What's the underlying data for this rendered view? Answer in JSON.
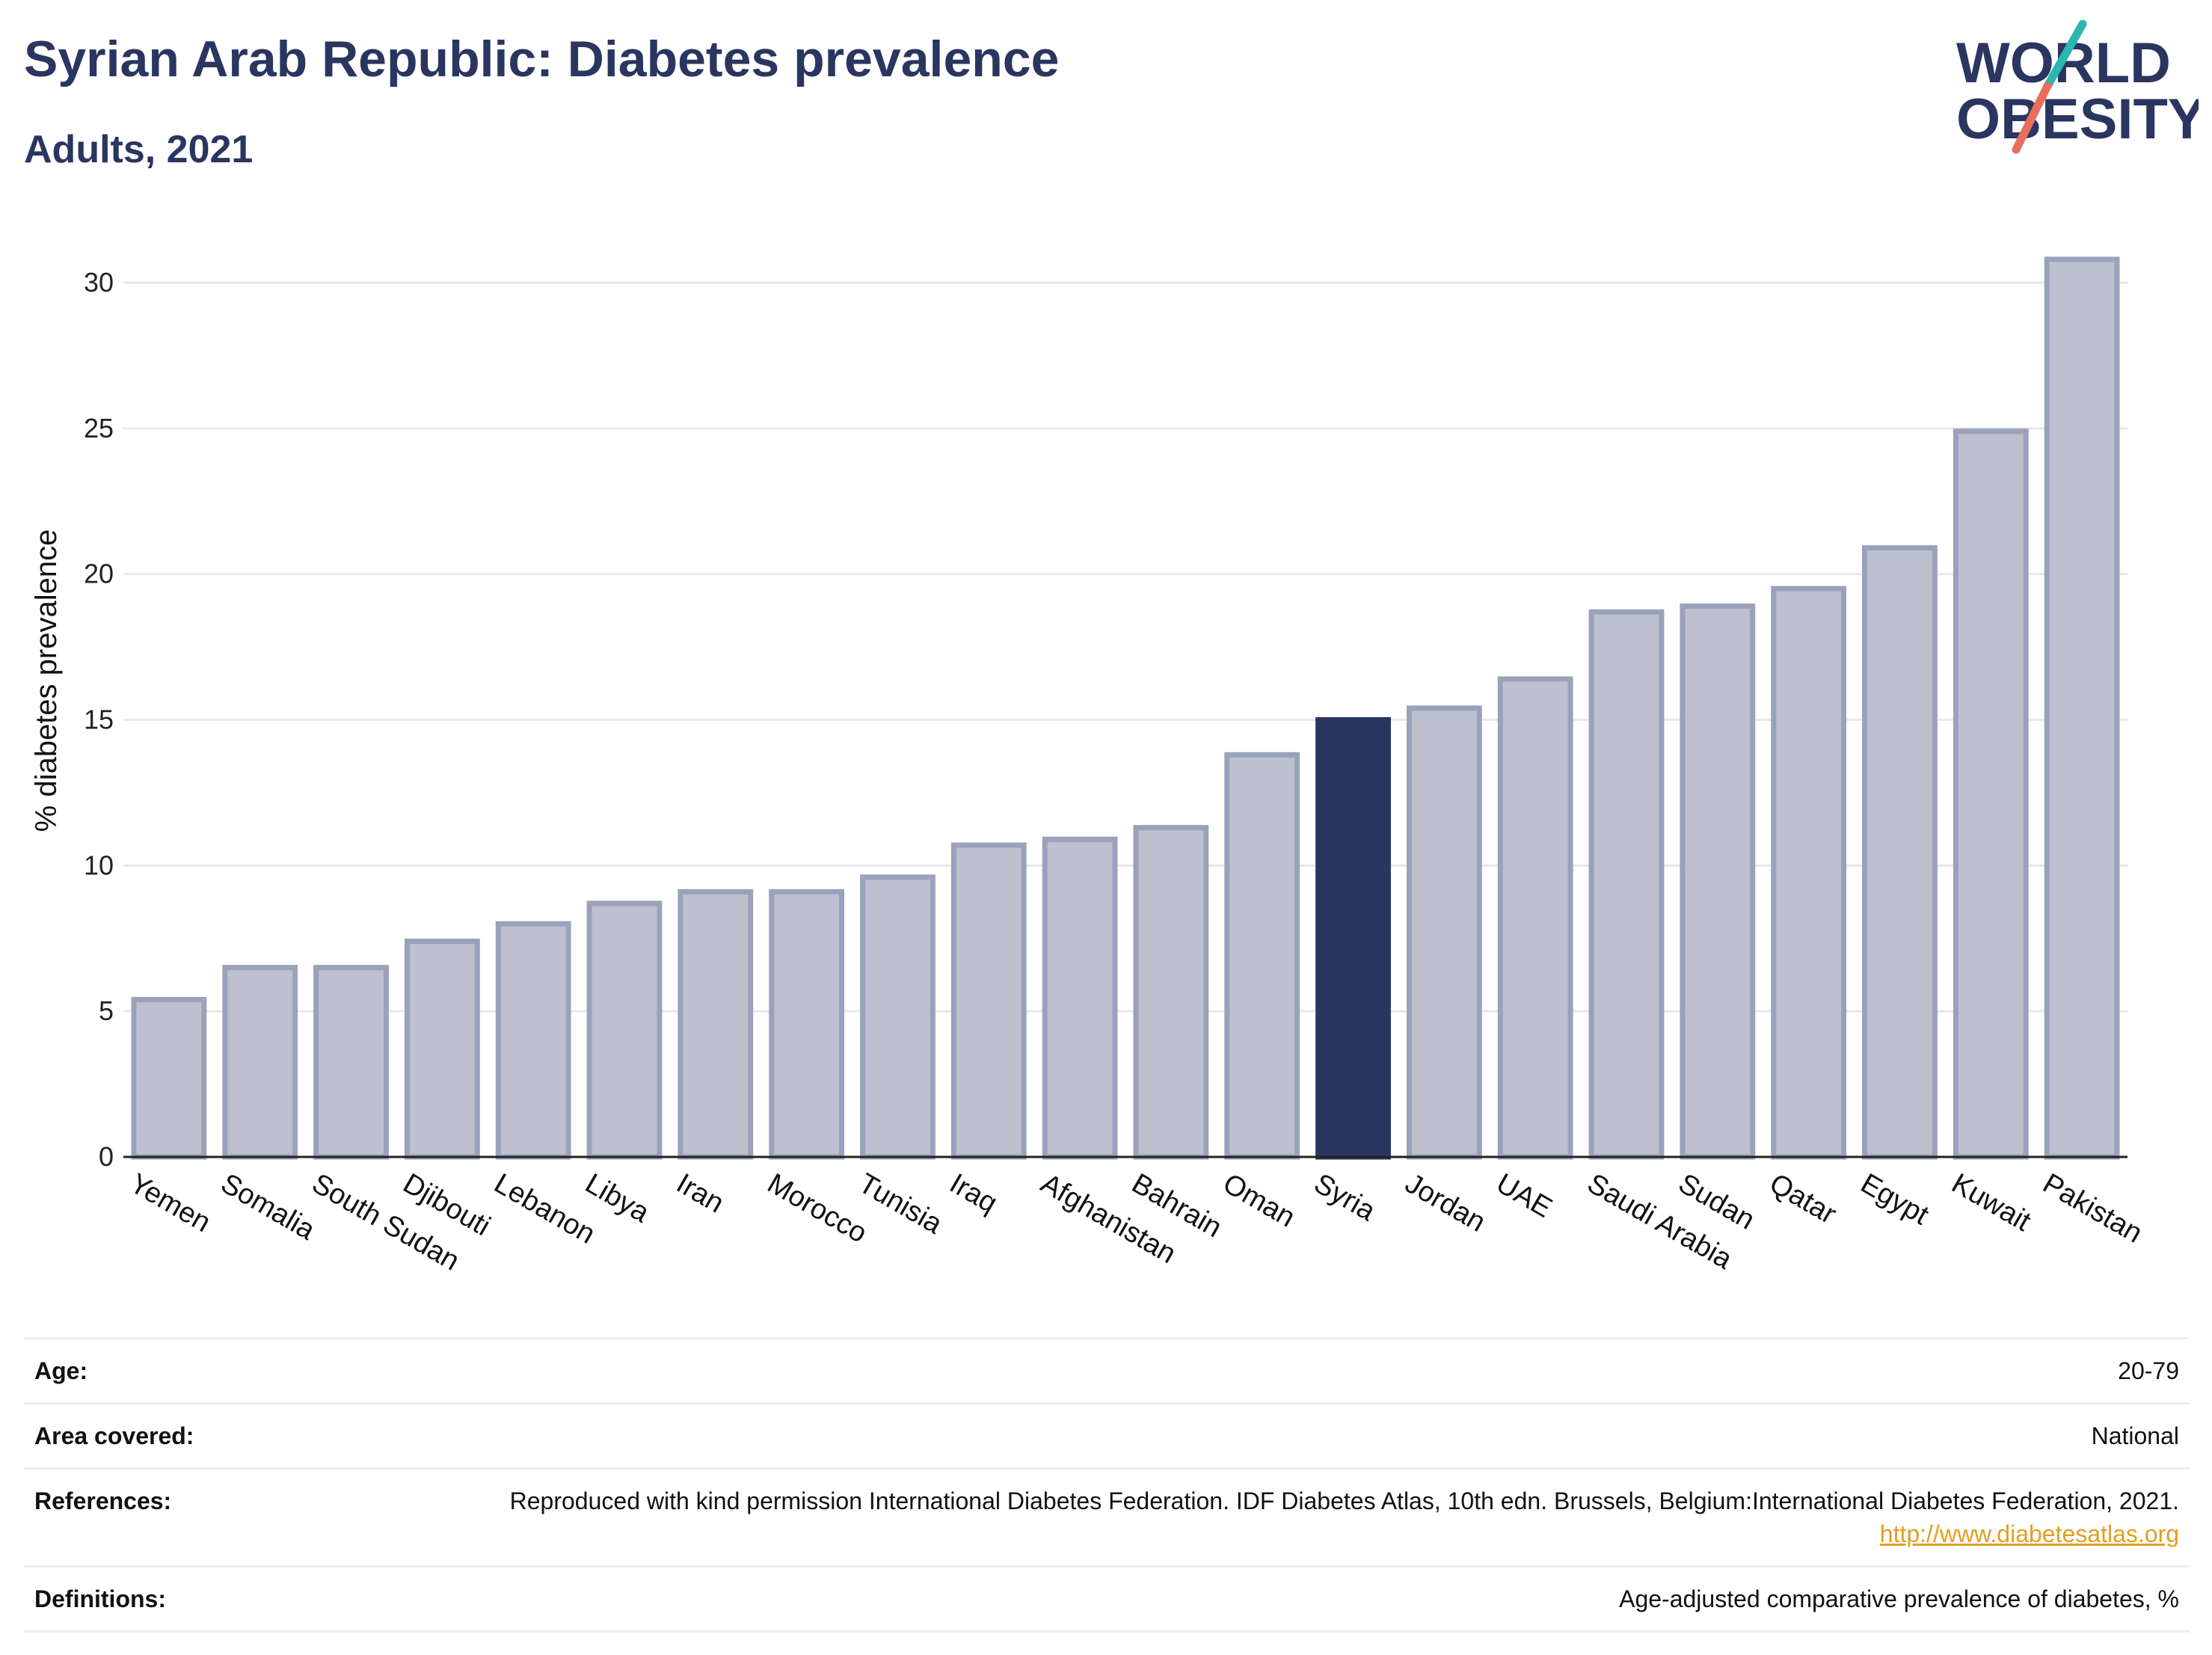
{
  "header": {
    "title": "Syrian Arab Republic: Diabetes prevalence",
    "subtitle": "Adults, 2021"
  },
  "logo": {
    "line1": "WORLD",
    "line2": "OBESITY",
    "slash_colors": [
      "#2ab7b2",
      "#e96e5c"
    ],
    "text_color": "#2a3560"
  },
  "colors": {
    "bar": "#bcc0cf",
    "bar_stroke": "#9aa1ba",
    "highlight": "#2a3560",
    "grid": "#e6e8ef",
    "axis": "#222222",
    "link": "#e0a01f"
  },
  "chart_data": {
    "type": "bar",
    "title": "Syrian Arab Republic: Diabetes prevalence",
    "subtitle": "Adults, 2021",
    "xlabel": "",
    "ylabel": "% diabetes prevalence",
    "ylim": [
      0,
      32
    ],
    "yticks": [
      0,
      5,
      10,
      15,
      20,
      25,
      30
    ],
    "grid": true,
    "highlight": "Syria",
    "categories": [
      "Yemen",
      "Somalia",
      "South Sudan",
      "Djibouti",
      "Lebanon",
      "Libya",
      "Iran",
      "Morocco",
      "Tunisia",
      "Iraq",
      "Afghanistan",
      "Bahrain",
      "Oman",
      "Syria",
      "Jordan",
      "UAE",
      "Saudi Arabia",
      "Sudan",
      "Qatar",
      "Egypt",
      "Kuwait",
      "Pakistan"
    ],
    "values": [
      5.4,
      6.5,
      6.5,
      7.4,
      8.0,
      8.7,
      9.1,
      9.1,
      9.6,
      10.7,
      10.9,
      11.3,
      13.8,
      15.0,
      15.4,
      16.4,
      18.7,
      18.9,
      19.5,
      20.9,
      24.9,
      30.8
    ]
  },
  "meta": {
    "age": {
      "label": "Age:",
      "value": "20-79"
    },
    "area": {
      "label": "Area covered:",
      "value": "National"
    },
    "references": {
      "label": "References:",
      "value": "Reproduced with kind permission International Diabetes Federation.  IDF Diabetes Atlas, 10th edn. Brussels, Belgium:International Diabetes Federation, 2021.",
      "link": "http://www.diabetesatlas.org"
    },
    "definitions": {
      "label": "Definitions:",
      "value": "Age-adjusted comparative prevalence of diabetes, %"
    }
  }
}
